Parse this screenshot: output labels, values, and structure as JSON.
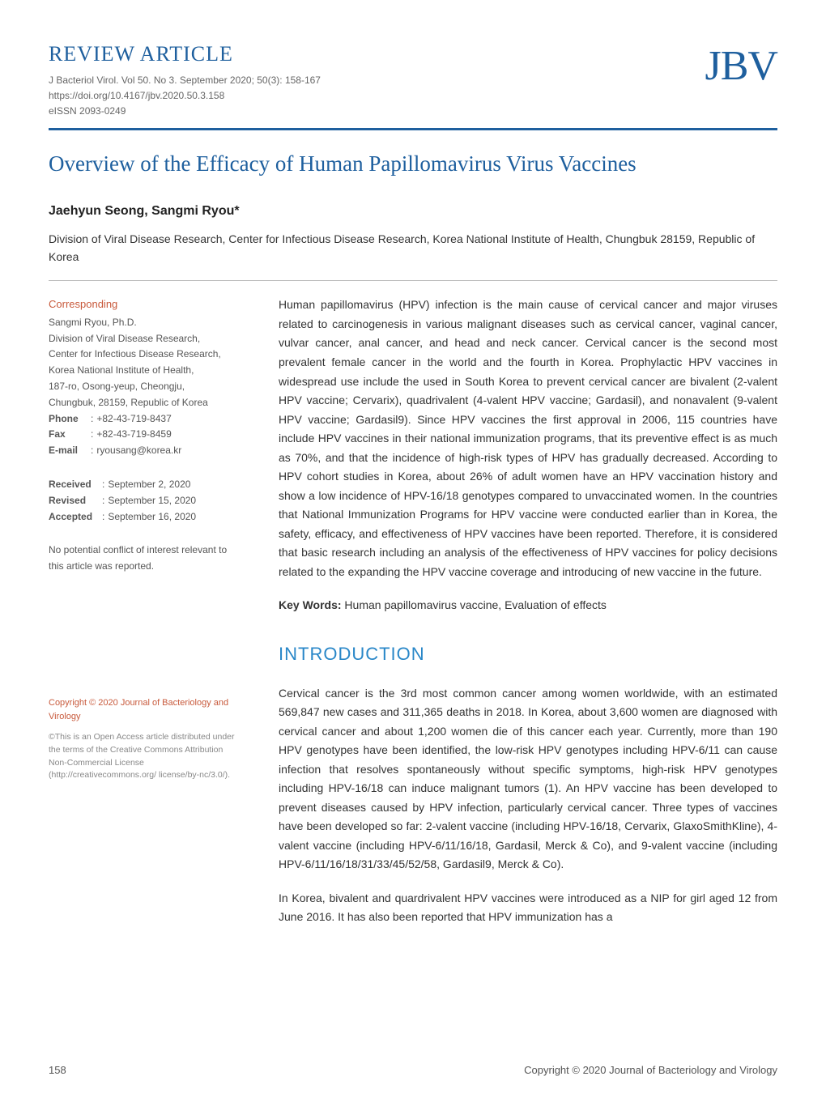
{
  "header": {
    "article_type": "REVIEW ARTICLE",
    "journal_line": "J Bacteriol Virol. Vol 50. No 3. September 2020; 50(3): 158-167",
    "doi": "https://doi.org/10.4167/jbv.2020.50.3.158",
    "eissn": "eISSN 2093-0249",
    "logo": "JBV"
  },
  "title": "Overview of the Efficacy of Human Papillomavirus Virus Vaccines",
  "authors": "Jaehyun Seong, Sangmi Ryou*",
  "affiliation": "Division of Viral Disease Research, Center for Infectious Disease Research, Korea National Institute of Health, Chungbuk 28159, Republic of Korea",
  "corresponding": {
    "label": "Corresponding",
    "name": "Sangmi Ryou, Ph.D.",
    "line1": "Division of Viral Disease Research,",
    "line2": "Center for Infectious Disease Research,",
    "line3": "Korea National Institute of Health,",
    "line4": "187-ro, Osong-yeup, Cheongju,",
    "line5": "Chungbuk, 28159, Republic of Korea",
    "phone_label": "Phone",
    "phone": "+82-43-719-8437",
    "fax_label": "Fax",
    "fax": "+82-43-719-8459",
    "email_label": "E-mail",
    "email": "ryousang@korea.kr"
  },
  "dates": {
    "received_label": "Received",
    "received": "September 2, 2020",
    "revised_label": "Revised",
    "revised": "September 15, 2020",
    "accepted_label": "Accepted",
    "accepted": "September 16, 2020"
  },
  "conflict": "No potential conflict of interest relevant to this article was reported.",
  "copyright": {
    "main": "Copyright © 2020 Journal of Bacteriology and Virology",
    "license1": "©This is an Open Access article distributed under the terms of the Creative Commons Attribution Non-Commercial License",
    "license2": "(http://creativecommons.org/ license/by-nc/3.0/)."
  },
  "abstract": "Human papillomavirus (HPV) infection is the main cause of cervical cancer and major viruses related to carcinogenesis in various malignant diseases such as cervical cancer, vaginal cancer, vulvar cancer, anal cancer, and head and neck cancer. Cervical cancer is the second most prevalent female cancer in the world and the fourth in Korea. Prophylactic HPV vaccines in widespread use include the used in South Korea to prevent cervical cancer are bivalent (2-valent HPV vaccine; Cervarix), quadrivalent (4-valent HPV vaccine; Gardasil), and nonavalent (9-valent HPV vaccine; Gardasil9). Since HPV vaccines the first approval in 2006, 115 countries have include HPV vaccines in their national immunization programs, that its preventive effect is as much as 70%, and that the incidence of high-risk types of HPV has gradually decreased. According to HPV cohort studies in Korea, about 26% of adult women have an HPV vaccination history and show a low incidence of HPV-16/18 genotypes compared to unvaccinated women. In the countries that National Immunization Programs for HPV vaccine were conducted earlier than in Korea, the safety, efficacy, and effectiveness of HPV vaccines have been reported. Therefore, it is considered that basic research including an analysis of the effectiveness of HPV vaccines for policy decisions related to the expanding the HPV vaccine coverage and introducing of new vaccine in the future.",
  "keywords": {
    "label": "Key Words:",
    "text": " Human papillomavirus vaccine, Evaluation of effects"
  },
  "intro": {
    "heading": "INTRODUCTION",
    "para1": "Cervical cancer is the 3rd most common cancer among women worldwide, with an estimated 569,847 new cases and 311,365 deaths in 2018. In Korea, about 3,600 women are diagnosed with cervical cancer and about 1,200 women die of this cancer each year. Currently, more than 190 HPV genotypes have been identified, the low-risk HPV genotypes including HPV-6/11 can cause infection that resolves spontaneously without specific symptoms, high-risk HPV genotypes including HPV-16/18 can induce malignant tumors (1). An HPV vaccine has been developed to prevent diseases caused by HPV infection, particularly cervical cancer. Three types of vaccines have been developed so far: 2-valent vaccine (including HPV-16/18, Cervarix, GlaxoSmithKline), 4-valent vaccine (including HPV-6/11/16/18, Gardasil, Merck & Co), and 9-valent vaccine (including HPV-6/11/16/18/31/33/45/52/58, Gardasil9, Merck & Co).",
    "para2": "In Korea, bivalent and quardrivalent HPV vaccines were introduced as a NIP for girl aged 12 from June 2016. It has also been reported that HPV immunization has a"
  },
  "footer": {
    "page": "158",
    "copyright": "Copyright © 2020 Journal of Bacteriology and Virology"
  }
}
